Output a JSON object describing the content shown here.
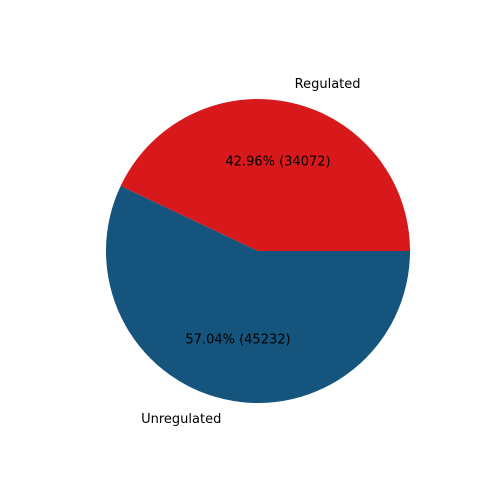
{
  "chart_data": {
    "type": "pie",
    "title": "",
    "slices": [
      {
        "label": "Regulated",
        "value": 34072,
        "percent_label": "42.96%  (34072)",
        "color": "#d7191c"
      },
      {
        "label": "Unregulated",
        "value": 45232,
        "percent_label": "57.04%  (45232)",
        "color": "#15547c"
      }
    ],
    "start_angle_deg": 0,
    "direction": "counterclockwise",
    "legend": "none"
  }
}
